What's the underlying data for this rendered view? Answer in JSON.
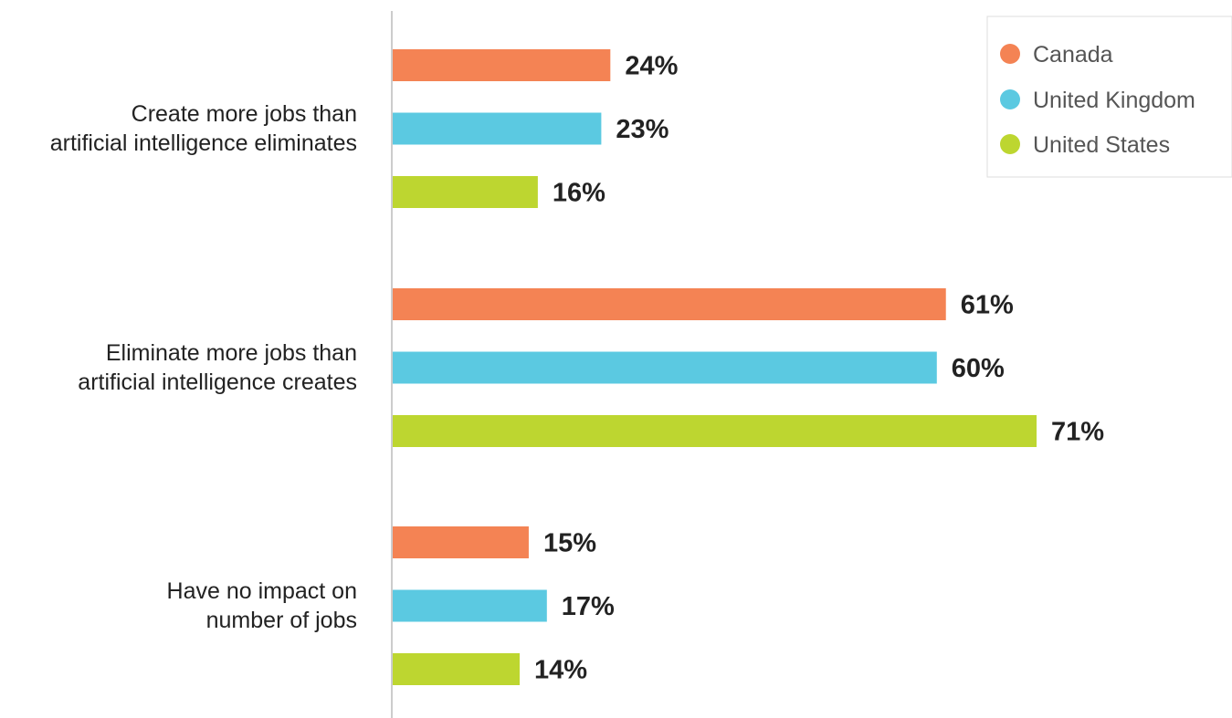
{
  "chart_data": {
    "type": "bar",
    "orientation": "horizontal",
    "categories": [
      [
        "Create more jobs than",
        "artificial intelligence eliminates"
      ],
      [
        "Eliminate more jobs than",
        "artificial intelligence creates"
      ],
      [
        "Have no impact on",
        "number of jobs"
      ]
    ],
    "series": [
      {
        "name": "Canada",
        "color": "#F48354",
        "values": [
          24,
          61,
          15
        ],
        "labels": [
          "24%",
          "61%",
          "15%"
        ]
      },
      {
        "name": "United Kingdom",
        "color": "#5BC9E1",
        "values": [
          23,
          60,
          17
        ],
        "labels": [
          "23%",
          "60%",
          "17%"
        ]
      },
      {
        "name": "United States",
        "color": "#BDD630",
        "values": [
          16,
          71,
          14
        ],
        "labels": [
          "16%",
          "71%",
          "14%"
        ]
      }
    ],
    "value_unit": "%",
    "xlim": [
      0,
      100
    ],
    "grid": false,
    "legend": "top-right",
    "title": "",
    "xlabel": "",
    "ylabel": ""
  }
}
